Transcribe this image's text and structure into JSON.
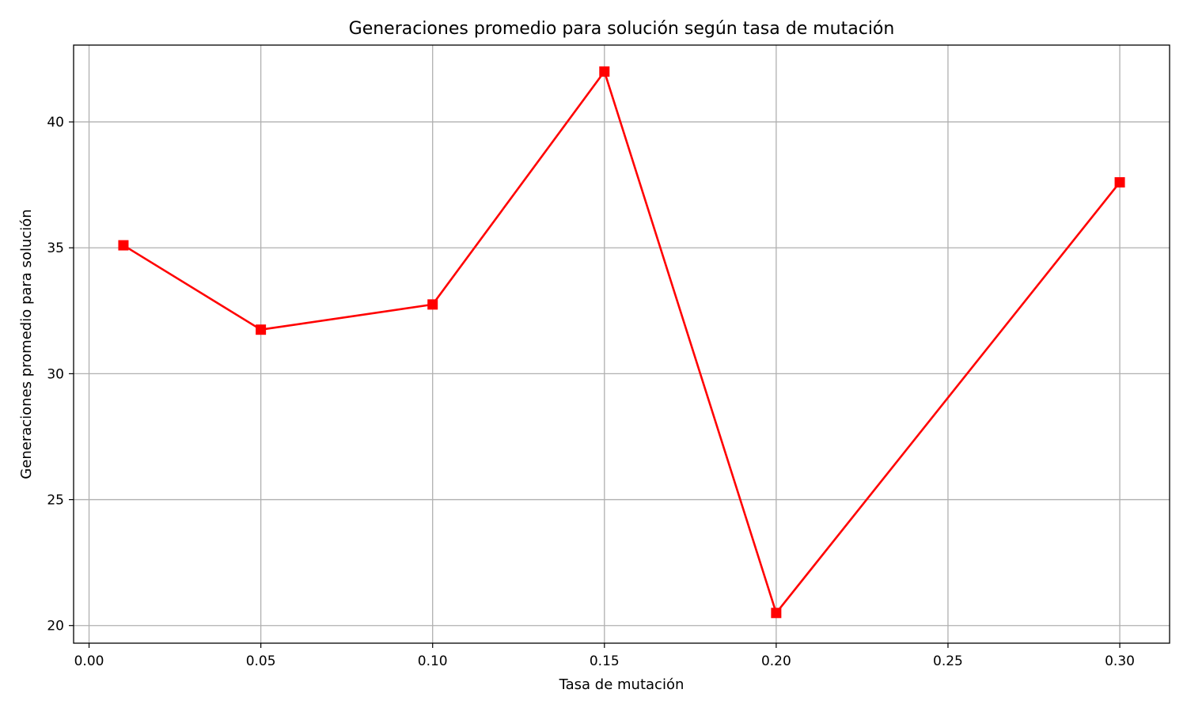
{
  "chart_data": {
    "type": "line",
    "title": "Generaciones promedio para solución según tasa de mutación",
    "xlabel": "Tasa de mutación",
    "ylabel": "Generaciones promedio para solución",
    "xlim": [
      -0.0045,
      0.3145
    ],
    "ylim": [
      19.3,
      43.05
    ],
    "x_ticks": [
      "0.00",
      "0.05",
      "0.10",
      "0.15",
      "0.20",
      "0.25",
      "0.30"
    ],
    "y_ticks": [
      "20",
      "25",
      "30",
      "35",
      "40"
    ],
    "grid": true,
    "series": [
      {
        "x": [
          0.01,
          0.05,
          0.1,
          0.15,
          0.2,
          0.3
        ],
        "y": [
          35.1,
          31.75,
          32.75,
          42.0,
          20.5,
          37.6
        ],
        "color": "#ff0000",
        "marker": "square"
      }
    ]
  }
}
